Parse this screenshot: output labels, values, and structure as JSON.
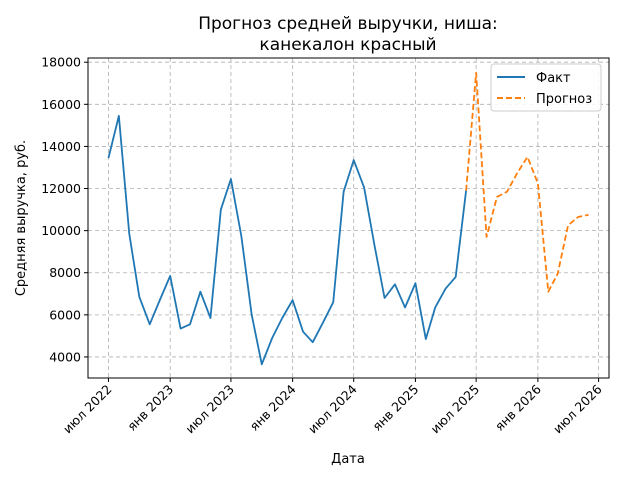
{
  "chart_data": {
    "type": "line",
    "title": [
      "Прогноз средней выручки, ниша:",
      "канекалон красный"
    ],
    "xlabel": "Дата",
    "ylabel": "Средняя выручка, руб.",
    "grid": true,
    "legend_position": "top-right",
    "xlim": [
      "2022-05-01",
      "2026-08-01"
    ],
    "ylim": [
      3000,
      18200
    ],
    "x_ticks": [
      {
        "date": "2022-07-01",
        "label": "июл 2022"
      },
      {
        "date": "2023-01-01",
        "label": "янв 2023"
      },
      {
        "date": "2023-07-01",
        "label": "июл 2023"
      },
      {
        "date": "2024-01-01",
        "label": "янв 2024"
      },
      {
        "date": "2024-07-01",
        "label": "июл 2024"
      },
      {
        "date": "2025-01-01",
        "label": "янв 2025"
      },
      {
        "date": "2025-07-01",
        "label": "июл 2025"
      },
      {
        "date": "2026-01-01",
        "label": "янв 2026"
      },
      {
        "date": "2026-07-01",
        "label": "июл 2026"
      }
    ],
    "y_ticks": [
      {
        "value": 4000,
        "label": "4000"
      },
      {
        "value": 6000,
        "label": "6000"
      },
      {
        "value": 8000,
        "label": "8000"
      },
      {
        "value": 10000,
        "label": "10000"
      },
      {
        "value": 12000,
        "label": "12000"
      },
      {
        "value": 14000,
        "label": "14000"
      },
      {
        "value": 16000,
        "label": "16000"
      },
      {
        "value": 18000,
        "label": "18000"
      }
    ],
    "series": [
      {
        "name": "Факт",
        "color": "#1f77b4",
        "style": "solid",
        "points": [
          {
            "x": "2022-07-01",
            "y": 13450
          },
          {
            "x": "2022-08-01",
            "y": 15450
          },
          {
            "x": "2022-09-01",
            "y": 9850
          },
          {
            "x": "2022-10-01",
            "y": 6850
          },
          {
            "x": "2022-11-01",
            "y": 5550
          },
          {
            "x": "2022-12-01",
            "y": 6700
          },
          {
            "x": "2023-01-01",
            "y": 7850
          },
          {
            "x": "2023-02-01",
            "y": 5350
          },
          {
            "x": "2023-03-01",
            "y": 5550
          },
          {
            "x": "2023-04-01",
            "y": 7100
          },
          {
            "x": "2023-05-01",
            "y": 5850
          },
          {
            "x": "2023-06-01",
            "y": 11000
          },
          {
            "x": "2023-07-01",
            "y": 12450
          },
          {
            "x": "2023-08-01",
            "y": 9750
          },
          {
            "x": "2023-09-01",
            "y": 6000
          },
          {
            "x": "2023-10-01",
            "y": 3650
          },
          {
            "x": "2023-11-01",
            "y": 4900
          },
          {
            "x": "2023-12-01",
            "y": 5850
          },
          {
            "x": "2024-01-01",
            "y": 6700
          },
          {
            "x": "2024-02-01",
            "y": 5200
          },
          {
            "x": "2024-03-01",
            "y": 4700
          },
          {
            "x": "2024-04-01",
            "y": 5650
          },
          {
            "x": "2024-05-01",
            "y": 6600
          },
          {
            "x": "2024-06-01",
            "y": 11850
          },
          {
            "x": "2024-07-01",
            "y": 13350
          },
          {
            "x": "2024-08-01",
            "y": 12050
          },
          {
            "x": "2024-09-01",
            "y": 9300
          },
          {
            "x": "2024-10-01",
            "y": 6800
          },
          {
            "x": "2024-11-01",
            "y": 7450
          },
          {
            "x": "2024-12-01",
            "y": 6350
          },
          {
            "x": "2025-01-01",
            "y": 7500
          },
          {
            "x": "2025-02-01",
            "y": 4850
          },
          {
            "x": "2025-03-01",
            "y": 6350
          },
          {
            "x": "2025-04-01",
            "y": 7250
          },
          {
            "x": "2025-05-01",
            "y": 7800
          },
          {
            "x": "2025-06-01",
            "y": 11900
          }
        ]
      },
      {
        "name": "Прогноз",
        "color": "#ff7f0e",
        "style": "dashed",
        "points": [
          {
            "x": "2025-06-01",
            "y": 11900
          },
          {
            "x": "2025-07-01",
            "y": 17500
          },
          {
            "x": "2025-08-01",
            "y": 9700
          },
          {
            "x": "2025-09-01",
            "y": 11600
          },
          {
            "x": "2025-10-01",
            "y": 11850
          },
          {
            "x": "2025-11-01",
            "y": 12750
          },
          {
            "x": "2025-12-01",
            "y": 13500
          },
          {
            "x": "2026-01-01",
            "y": 12250
          },
          {
            "x": "2026-02-01",
            "y": 7100
          },
          {
            "x": "2026-03-01",
            "y": 7950
          },
          {
            "x": "2026-04-01",
            "y": 10250
          },
          {
            "x": "2026-05-01",
            "y": 10650
          },
          {
            "x": "2026-06-01",
            "y": 10750
          }
        ]
      }
    ]
  }
}
